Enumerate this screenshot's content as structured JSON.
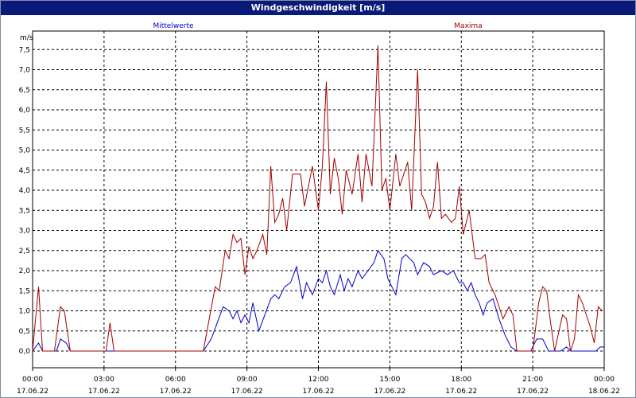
{
  "window": {
    "title": "Windgeschwindigkeit [m/s]"
  },
  "chart_data": {
    "type": "line",
    "title": "Windgeschwindigkeit [m/s]",
    "ylabel": "m/s",
    "xlabel": "",
    "xlim": [
      "17.06.22 00:00",
      "18.06.22 00:00"
    ],
    "ylim": [
      0,
      8
    ],
    "grid": true,
    "legend": "top",
    "y_ticks": [
      "0,0",
      "0,5",
      "1,0",
      "1,5",
      "2,0",
      "2,5",
      "3,0",
      "3,5",
      "4,0",
      "4,5",
      "5,0",
      "5,5",
      "6,0",
      "6,5",
      "7,0",
      "7,5"
    ],
    "x_ticks": [
      {
        "time": "00:00",
        "date": "17.06.22"
      },
      {
        "time": "03:00",
        "date": "17.06.22"
      },
      {
        "time": "06:00",
        "date": "17.06.22"
      },
      {
        "time": "09:00",
        "date": "17.06.22"
      },
      {
        "time": "12:00",
        "date": "17.06.22"
      },
      {
        "time": "15:00",
        "date": "17.06.22"
      },
      {
        "time": "18:00",
        "date": "17.06.22"
      },
      {
        "time": "21:00",
        "date": "17.06.22"
      },
      {
        "time": "00:00",
        "date": "18.06.22"
      }
    ],
    "series": [
      {
        "name": "Mittelwerte",
        "color": "#0000cc",
        "points": [
          [
            "00:00",
            0
          ],
          [
            "00:15",
            0.2
          ],
          [
            "00:25",
            0
          ],
          [
            "01:00",
            0
          ],
          [
            "01:10",
            0.3
          ],
          [
            "01:25",
            0.2
          ],
          [
            "01:35",
            0
          ],
          [
            "07:10",
            0
          ],
          [
            "07:30",
            0.3
          ],
          [
            "07:45",
            0.7
          ],
          [
            "08:00",
            1.1
          ],
          [
            "08:15",
            1.0
          ],
          [
            "08:25",
            0.8
          ],
          [
            "08:35",
            1.0
          ],
          [
            "08:45",
            0.7
          ],
          [
            "08:55",
            0.9
          ],
          [
            "09:05",
            0.7
          ],
          [
            "09:15",
            1.2
          ],
          [
            "09:30",
            0.5
          ],
          [
            "09:45",
            0.9
          ],
          [
            "10:00",
            1.3
          ],
          [
            "10:10",
            1.4
          ],
          [
            "10:20",
            1.3
          ],
          [
            "10:35",
            1.6
          ],
          [
            "10:50",
            1.7
          ],
          [
            "11:05",
            2.1
          ],
          [
            "11:20",
            1.3
          ],
          [
            "11:30",
            1.7
          ],
          [
            "11:45",
            1.4
          ],
          [
            "12:00",
            1.8
          ],
          [
            "12:10",
            1.7
          ],
          [
            "12:20",
            2.0
          ],
          [
            "12:30",
            1.6
          ],
          [
            "12:40",
            1.4
          ],
          [
            "12:55",
            1.9
          ],
          [
            "13:05",
            1.5
          ],
          [
            "13:15",
            1.8
          ],
          [
            "13:25",
            1.6
          ],
          [
            "13:40",
            2.0
          ],
          [
            "13:50",
            1.8
          ],
          [
            "14:05",
            2.0
          ],
          [
            "14:20",
            2.2
          ],
          [
            "14:30",
            2.5
          ],
          [
            "14:45",
            2.3
          ],
          [
            "14:55",
            1.8
          ],
          [
            "15:05",
            1.6
          ],
          [
            "15:15",
            1.4
          ],
          [
            "15:30",
            2.3
          ],
          [
            "15:40",
            2.4
          ],
          [
            "16:00",
            2.2
          ],
          [
            "16:10",
            1.9
          ],
          [
            "16:25",
            2.2
          ],
          [
            "16:40",
            2.1
          ],
          [
            "16:50",
            1.9
          ],
          [
            "17:10",
            2.0
          ],
          [
            "17:25",
            1.9
          ],
          [
            "17:40",
            2.0
          ],
          [
            "17:55",
            1.7
          ],
          [
            "18:05",
            1.7
          ],
          [
            "18:15",
            1.5
          ],
          [
            "18:25",
            1.7
          ],
          [
            "18:35",
            1.4
          ],
          [
            "18:45",
            1.2
          ],
          [
            "18:55",
            0.9
          ],
          [
            "19:05",
            1.2
          ],
          [
            "19:20",
            1.3
          ],
          [
            "19:35",
            0.8
          ],
          [
            "19:50",
            0.4
          ],
          [
            "20:05",
            0.1
          ],
          [
            "20:20",
            0
          ],
          [
            "20:55",
            0
          ],
          [
            "21:10",
            0.3
          ],
          [
            "21:25",
            0.3
          ],
          [
            "21:40",
            0
          ],
          [
            "22:10",
            0
          ],
          [
            "22:25",
            0.1
          ],
          [
            "22:35",
            0
          ],
          [
            "23:40",
            0
          ],
          [
            "23:50",
            0.1
          ],
          [
            "24:00",
            0.1
          ]
        ]
      },
      {
        "name": "Maxima",
        "color": "#a30000",
        "points": [
          [
            "00:00",
            0
          ],
          [
            "00:15",
            1.6
          ],
          [
            "00:25",
            0
          ],
          [
            "00:55",
            0
          ],
          [
            "01:10",
            1.1
          ],
          [
            "01:20",
            1.0
          ],
          [
            "01:35",
            0
          ],
          [
            "03:05",
            0
          ],
          [
            "03:15",
            0.7
          ],
          [
            "03:25",
            0
          ],
          [
            "07:10",
            0
          ],
          [
            "07:25",
            0.8
          ],
          [
            "07:40",
            1.6
          ],
          [
            "07:50",
            1.5
          ],
          [
            "08:05",
            2.5
          ],
          [
            "08:15",
            2.3
          ],
          [
            "08:25",
            2.9
          ],
          [
            "08:35",
            2.7
          ],
          [
            "08:45",
            2.8
          ],
          [
            "08:55",
            1.9
          ],
          [
            "09:05",
            2.6
          ],
          [
            "09:15",
            2.3
          ],
          [
            "09:25",
            2.5
          ],
          [
            "09:40",
            2.9
          ],
          [
            "09:50",
            2.4
          ],
          [
            "10:00",
            4.6
          ],
          [
            "10:10",
            3.2
          ],
          [
            "10:20",
            3.4
          ],
          [
            "10:30",
            3.8
          ],
          [
            "10:40",
            3.0
          ],
          [
            "10:55",
            4.4
          ],
          [
            "11:05",
            4.4
          ],
          [
            "11:15",
            4.4
          ],
          [
            "11:25",
            3.6
          ],
          [
            "11:45",
            4.6
          ],
          [
            "12:00",
            3.5
          ],
          [
            "12:10",
            4.6
          ],
          [
            "12:20",
            6.7
          ],
          [
            "12:30",
            3.9
          ],
          [
            "12:40",
            4.8
          ],
          [
            "12:50",
            4.3
          ],
          [
            "13:00",
            3.4
          ],
          [
            "13:10",
            4.5
          ],
          [
            "13:25",
            3.9
          ],
          [
            "13:40",
            4.9
          ],
          [
            "13:50",
            3.7
          ],
          [
            "14:00",
            4.9
          ],
          [
            "14:15",
            4.1
          ],
          [
            "14:30",
            7.6
          ],
          [
            "14:40",
            4.0
          ],
          [
            "14:50",
            4.3
          ],
          [
            "15:00",
            3.5
          ],
          [
            "15:15",
            4.9
          ],
          [
            "15:25",
            4.1
          ],
          [
            "15:45",
            4.7
          ],
          [
            "15:55",
            3.5
          ],
          [
            "16:10",
            7.0
          ],
          [
            "16:20",
            3.9
          ],
          [
            "16:30",
            3.7
          ],
          [
            "16:40",
            3.3
          ],
          [
            "16:50",
            3.6
          ],
          [
            "17:00",
            4.7
          ],
          [
            "17:10",
            3.3
          ],
          [
            "17:20",
            3.4
          ],
          [
            "17:35",
            3.2
          ],
          [
            "17:45",
            3.3
          ],
          [
            "17:55",
            4.1
          ],
          [
            "18:05",
            2.9
          ],
          [
            "18:20",
            3.5
          ],
          [
            "18:35",
            2.3
          ],
          [
            "18:50",
            2.3
          ],
          [
            "19:00",
            2.4
          ],
          [
            "19:10",
            1.7
          ],
          [
            "19:25",
            1.4
          ],
          [
            "19:35",
            1.1
          ],
          [
            "19:45",
            0.8
          ],
          [
            "20:00",
            1.1
          ],
          [
            "20:10",
            0.9
          ],
          [
            "20:20",
            0
          ],
          [
            "21:00",
            0
          ],
          [
            "21:15",
            1.2
          ],
          [
            "21:25",
            1.6
          ],
          [
            "21:35",
            1.5
          ],
          [
            "21:45",
            0.7
          ],
          [
            "21:55",
            0
          ],
          [
            "22:15",
            0.9
          ],
          [
            "22:25",
            0.8
          ],
          [
            "22:35",
            0
          ],
          [
            "22:45",
            0.3
          ],
          [
            "22:55",
            1.4
          ],
          [
            "23:05",
            1.2
          ],
          [
            "23:15",
            0.9
          ],
          [
            "23:25",
            0.6
          ],
          [
            "23:35",
            0.2
          ],
          [
            "23:45",
            1.1
          ],
          [
            "23:55",
            1.0
          ]
        ]
      }
    ]
  }
}
